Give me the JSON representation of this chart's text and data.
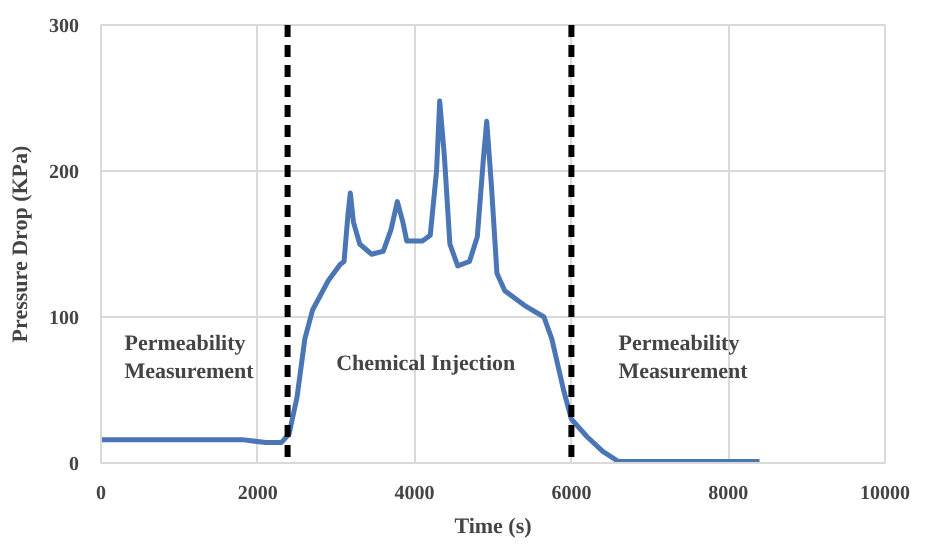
{
  "chart_data": {
    "type": "line",
    "xlabel": "Time (s)",
    "ylabel": "Pressure Drop (KPa)",
    "xlim": [
      0,
      10000
    ],
    "xticks": [
      0,
      2000,
      4000,
      6000,
      8000,
      10000
    ],
    "ylim": [
      0,
      300
    ],
    "yticks": [
      0,
      100,
      200,
      300
    ],
    "grid": true,
    "series": [
      {
        "color": "#4a76b5",
        "x": [
          0,
          1800,
          2100,
          2300,
          2400,
          2500,
          2600,
          2700,
          2900,
          3050,
          3100,
          3150,
          3180,
          3220,
          3300,
          3450,
          3600,
          3700,
          3780,
          3850,
          3900,
          4100,
          4200,
          4280,
          4320,
          4380,
          4450,
          4550,
          4700,
          4800,
          4880,
          4920,
          4980,
          5050,
          5150,
          5400,
          5650,
          5750,
          5900,
          6000,
          6200,
          6400,
          6600,
          7000,
          8400
        ],
        "values": [
          16,
          16,
          14,
          14,
          20,
          45,
          85,
          105,
          125,
          136,
          138,
          170,
          185,
          165,
          150,
          143,
          145,
          160,
          179,
          165,
          152,
          152,
          156,
          200,
          248,
          210,
          150,
          135,
          138,
          155,
          210,
          234,
          190,
          130,
          118,
          108,
          100,
          85,
          50,
          30,
          18,
          8,
          1,
          1,
          1
        ]
      }
    ],
    "ref_lines": [
      {
        "axis": "x",
        "value": 2380,
        "color": "#000000",
        "line_style": "dashed"
      },
      {
        "axis": "x",
        "value": 6000,
        "color": "#000000",
        "line_style": "dashed"
      }
    ],
    "annotations": [
      "Permeability\nMeasurement",
      "Chemical Injection",
      "Permeability\nMeasurement"
    ]
  }
}
